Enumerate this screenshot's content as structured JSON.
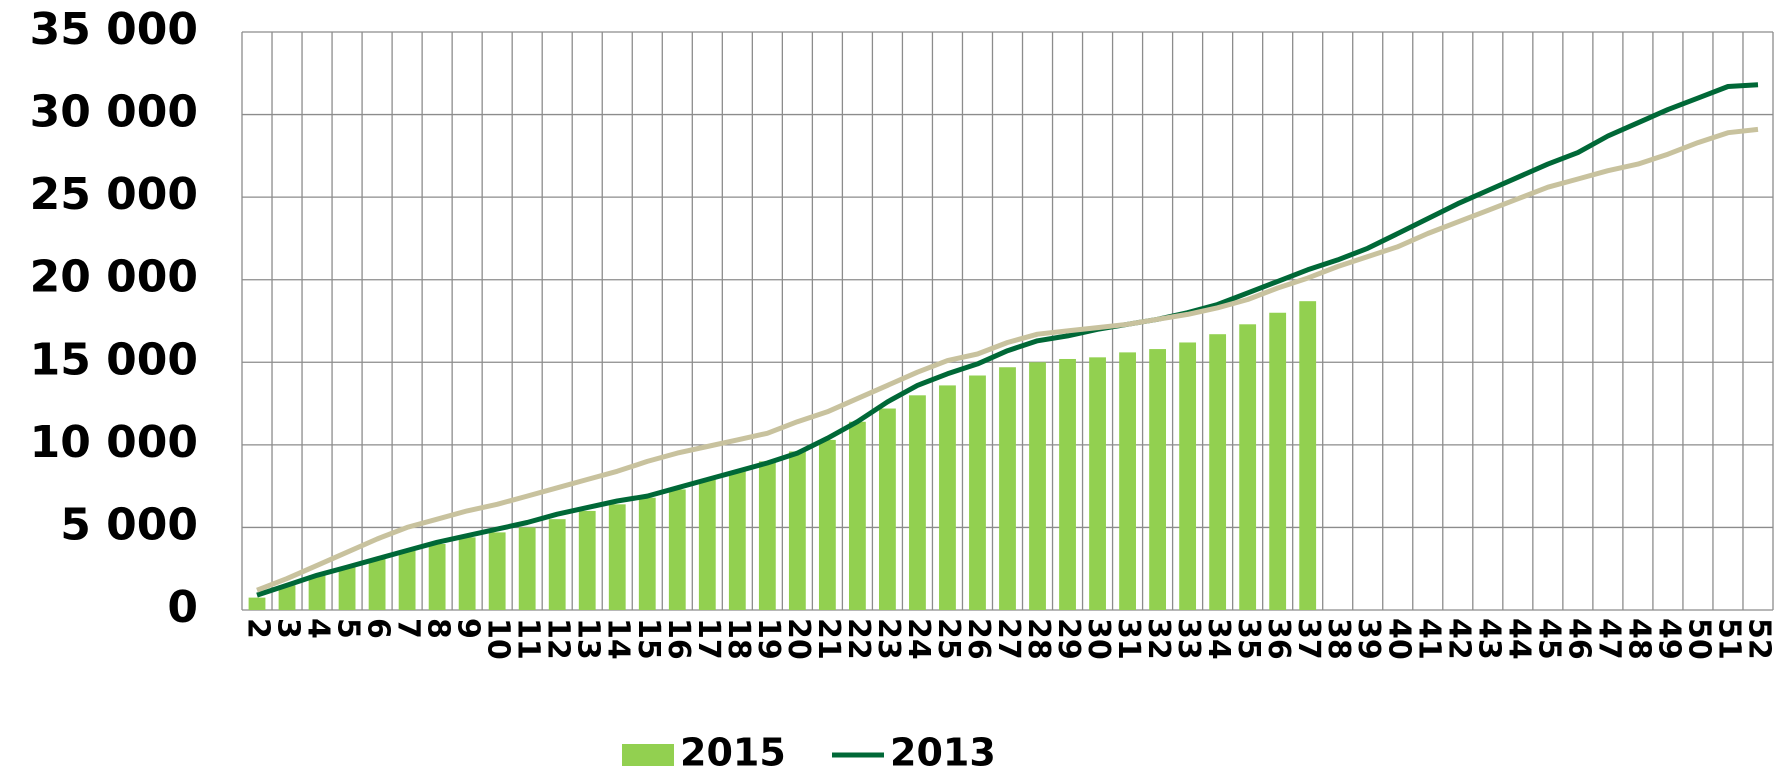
{
  "chart_data": {
    "type": "bar",
    "categories": [
      "2",
      "3",
      "4",
      "5",
      "6",
      "7",
      "8",
      "9",
      "10",
      "11",
      "12",
      "13",
      "14",
      "15",
      "16",
      "17",
      "18",
      "19",
      "20",
      "21",
      "22",
      "23",
      "24",
      "25",
      "26",
      "27",
      "28",
      "29",
      "30",
      "31",
      "32",
      "33",
      "34",
      "35",
      "36",
      "37",
      "38",
      "39",
      "40",
      "41",
      "42",
      "43",
      "44",
      "45",
      "46",
      "47",
      "48",
      "49",
      "50",
      "51",
      "52"
    ],
    "series": [
      {
        "name": "2015",
        "type": "bar",
        "color": "#92d050",
        "values": [
          750,
          1500,
          2100,
          2600,
          3100,
          3600,
          4000,
          4400,
          4700,
          5000,
          5500,
          6000,
          6400,
          6800,
          7300,
          7900,
          8400,
          9000,
          9600,
          10300,
          11400,
          12200,
          13000,
          13600,
          14200,
          14700,
          15000,
          15200,
          15300,
          15600,
          15800,
          16200,
          16700,
          17300,
          18000,
          18700,
          null,
          null,
          null,
          null,
          null,
          null,
          null,
          null,
          null,
          null,
          null,
          null,
          null,
          null,
          null
        ]
      },
      {
        "name": "2013",
        "type": "line",
        "color": "#006837",
        "values": [
          900,
          1500,
          2100,
          2600,
          3100,
          3600,
          4100,
          4500,
          4900,
          5300,
          5800,
          6200,
          6600,
          6900,
          7400,
          7900,
          8400,
          8900,
          9500,
          10400,
          11400,
          12600,
          13600,
          14300,
          14900,
          15700,
          16300,
          16600,
          17000,
          17300,
          17600,
          18000,
          18500,
          19200,
          19900,
          20600,
          21200,
          21900,
          22800,
          23700,
          24600,
          25400,
          26200,
          27000,
          27700,
          28700,
          29500,
          30300,
          31000,
          31700,
          31800
        ]
      },
      {
        "type": "line",
        "color": "#c8c29e",
        "values": [
          1200,
          1900,
          2700,
          3500,
          4300,
          5000,
          5500,
          6000,
          6400,
          6900,
          7400,
          7900,
          8400,
          9000,
          9500,
          9900,
          10300,
          10700,
          11400,
          12000,
          12800,
          13600,
          14400,
          15100,
          15500,
          16200,
          16700,
          16900,
          17100,
          17300,
          17600,
          17900,
          18300,
          18800,
          19500,
          20100,
          20800,
          21400,
          22000,
          22800,
          23500,
          24200,
          24900,
          25600,
          26100,
          26600,
          27000,
          27600,
          28300,
          28900,
          29100
        ]
      }
    ],
    "ylim": [
      0,
      35000
    ],
    "yticks": [
      0,
      {
        "value": 5000,
        "label": "5 000"
      },
      {
        "value": 10000,
        "label": "10 000"
      },
      {
        "value": 15000,
        "label": "15 000"
      },
      {
        "value": 20000,
        "label": "20 000"
      },
      {
        "value": 25000,
        "label": "25 000"
      },
      {
        "value": 30000,
        "label": "30 000"
      },
      {
        "value": 35000,
        "label": "35 000"
      }
    ],
    "grid": true
  }
}
